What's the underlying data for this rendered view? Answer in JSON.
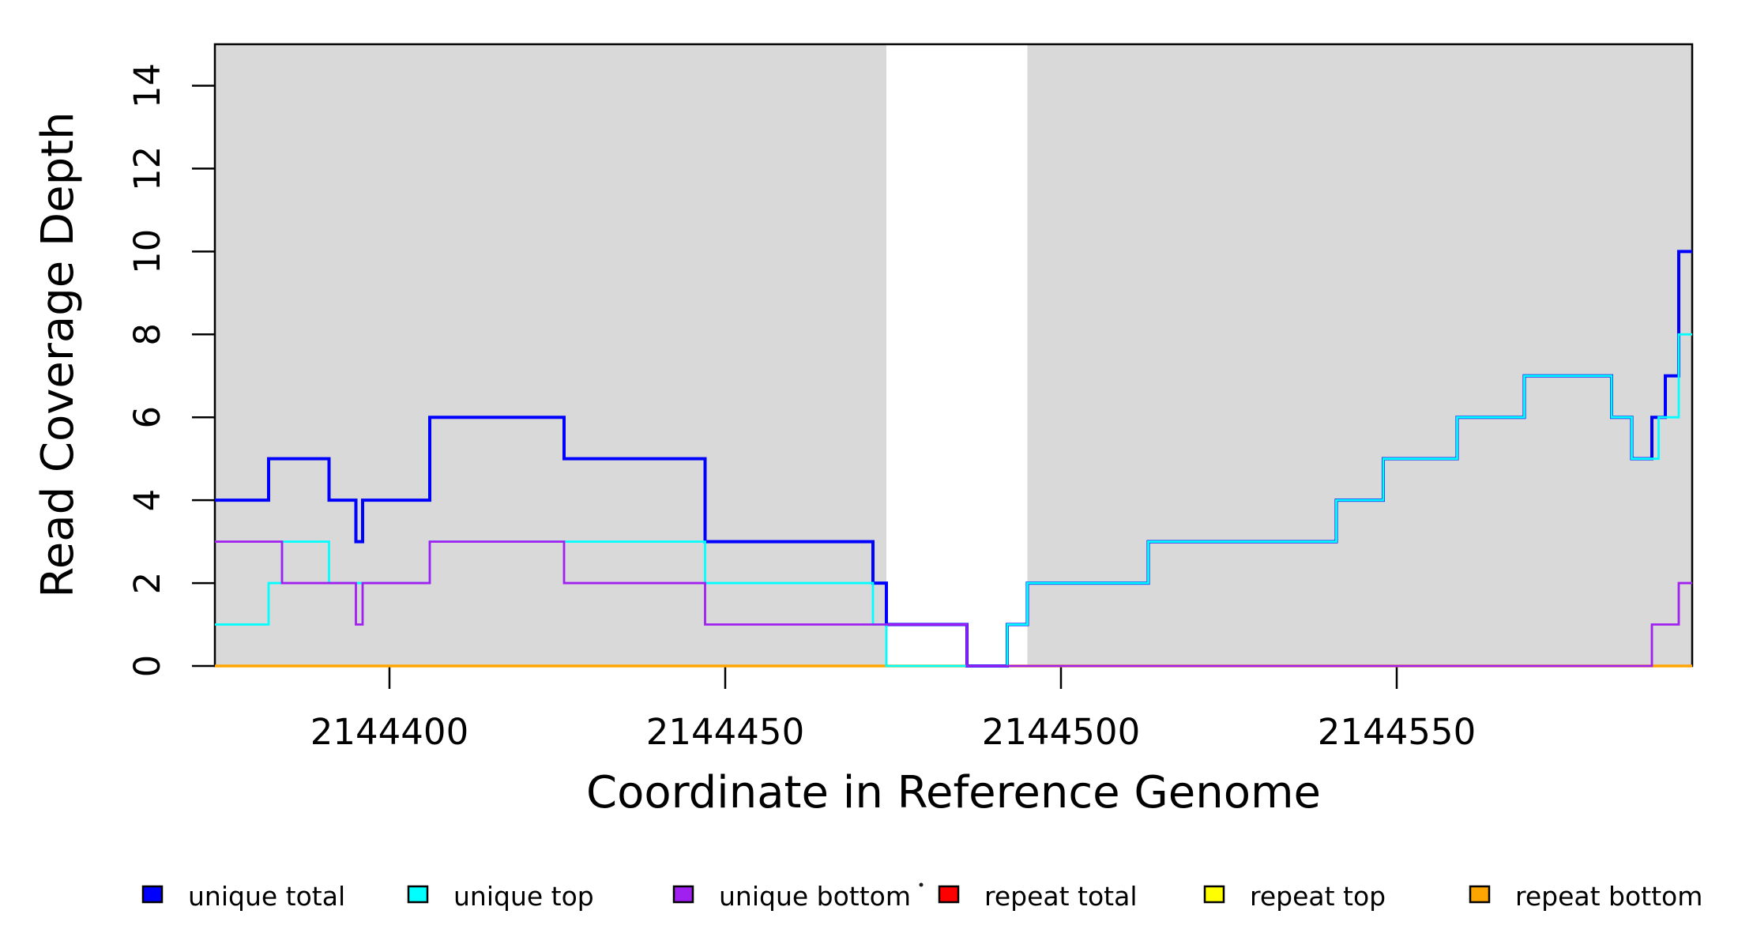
{
  "chart_data": {
    "type": "line",
    "subtype": "step",
    "title": "",
    "xlabel": "Coordinate in Reference Genome",
    "ylabel": "Read Coverage Depth",
    "xlim": [
      2144374,
      2144594
    ],
    "ylim": [
      0,
      15
    ],
    "xticks": [
      2144400,
      2144450,
      2144500,
      2144550
    ],
    "yticks": [
      0,
      2,
      4,
      6,
      8,
      10,
      12,
      14
    ],
    "grid": false,
    "background_color": "#ffffff",
    "shaded_region_color": "#d9d9d9",
    "axis_color": "#000000",
    "shaded_regions": [
      {
        "x0": 2144374,
        "x1": 2144474
      },
      {
        "x0": 2144495,
        "x1": 2144594
      }
    ],
    "draw_order": [
      "repeat total",
      "repeat top",
      "repeat bottom",
      "unique total",
      "unique top",
      "unique bottom"
    ],
    "series": [
      {
        "name": "unique total",
        "color": "#0000ff",
        "line_width": 4,
        "steps": [
          [
            2144374,
            4
          ],
          [
            2144382,
            5
          ],
          [
            2144391,
            4
          ],
          [
            2144395,
            3
          ],
          [
            2144396,
            4
          ],
          [
            2144406,
            6
          ],
          [
            2144426,
            5
          ],
          [
            2144447,
            3
          ],
          [
            2144472,
            2
          ],
          [
            2144474,
            1
          ],
          [
            2144486,
            0
          ],
          [
            2144492,
            1
          ],
          [
            2144495,
            2
          ],
          [
            2144513,
            3
          ],
          [
            2144541,
            4
          ],
          [
            2144548,
            5
          ],
          [
            2144559,
            6
          ],
          [
            2144569,
            7
          ],
          [
            2144582,
            6
          ],
          [
            2144585,
            5
          ],
          [
            2144588,
            6
          ],
          [
            2144590,
            7
          ],
          [
            2144592,
            10
          ]
        ]
      },
      {
        "name": "unique top",
        "color": "#00ffff",
        "line_width": 2.8,
        "steps": [
          [
            2144374,
            1
          ],
          [
            2144382,
            2
          ],
          [
            2144384,
            3
          ],
          [
            2144391,
            2
          ],
          [
            2144406,
            3
          ],
          [
            2144447,
            2
          ],
          [
            2144472,
            1
          ],
          [
            2144474,
            0
          ],
          [
            2144492,
            1
          ],
          [
            2144495,
            2
          ],
          [
            2144513,
            3
          ],
          [
            2144541,
            4
          ],
          [
            2144548,
            5
          ],
          [
            2144559,
            6
          ],
          [
            2144569,
            7
          ],
          [
            2144582,
            6
          ],
          [
            2144585,
            5
          ],
          [
            2144589,
            6
          ],
          [
            2144592,
            8
          ]
        ]
      },
      {
        "name": "unique bottom",
        "color": "#a020f0",
        "line_width": 2.8,
        "steps": [
          [
            2144374,
            3
          ],
          [
            2144384,
            2
          ],
          [
            2144395,
            1
          ],
          [
            2144396,
            2
          ],
          [
            2144406,
            3
          ],
          [
            2144426,
            2
          ],
          [
            2144447,
            1
          ],
          [
            2144486,
            0
          ],
          [
            2144588,
            1
          ],
          [
            2144592,
            2
          ]
        ]
      },
      {
        "name": "repeat total",
        "color": "#ff0000",
        "line_width": 2.8,
        "steps": [
          [
            2144374,
            0
          ]
        ]
      },
      {
        "name": "repeat top",
        "color": "#ffff00",
        "line_width": 2.8,
        "steps": [
          [
            2144374,
            0
          ]
        ]
      },
      {
        "name": "repeat bottom",
        "color": "#ffa500",
        "line_width": 3.5,
        "steps": [
          [
            2144374,
            0
          ]
        ]
      }
    ],
    "legend": {
      "position": "bottom",
      "entries": [
        {
          "label": "unique total",
          "color": "#0000ff"
        },
        {
          "label": "unique top",
          "color": "#00ffff"
        },
        {
          "label": "unique bottom",
          "color": "#a020f0"
        },
        {
          "label": "repeat total",
          "color": "#ff0000"
        },
        {
          "label": "repeat top",
          "color": "#ffff00"
        },
        {
          "label": "repeat bottom",
          "color": "#ffa500"
        }
      ]
    }
  }
}
